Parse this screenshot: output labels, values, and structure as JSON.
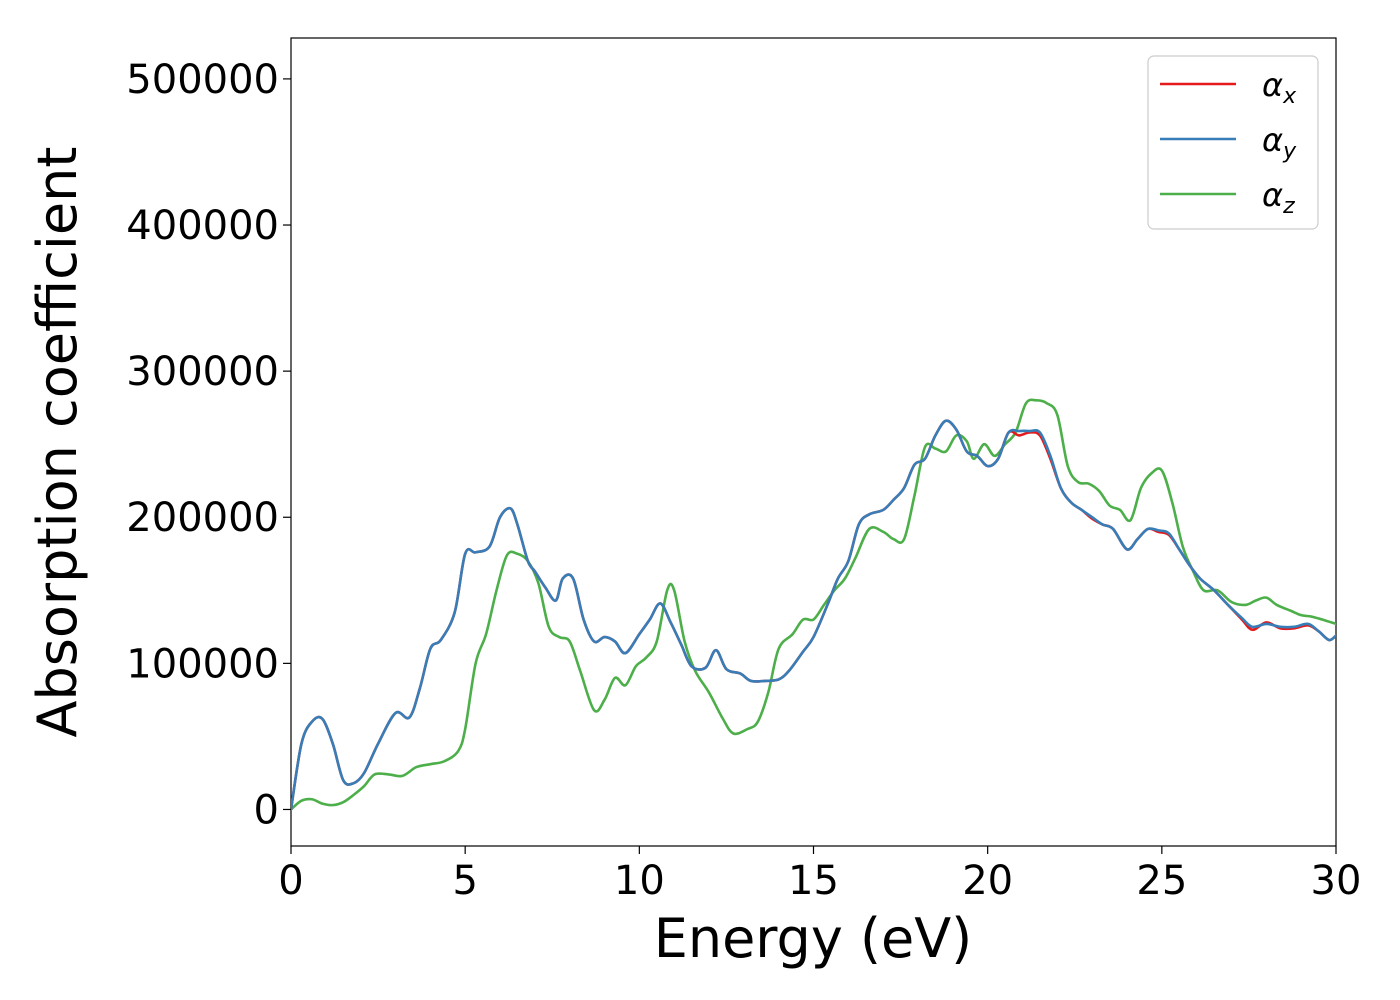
{
  "chart_data": {
    "type": "line",
    "title": "",
    "xlabel": "Energy (eV)",
    "ylabel": "Absorption coefficient",
    "xlim": [
      0,
      30
    ],
    "ylim": [
      -25000,
      528000
    ],
    "xticks": [
      0,
      5,
      10,
      15,
      20,
      25,
      30
    ],
    "xtick_labels": [
      "0",
      "5",
      "10",
      "15",
      "20",
      "25",
      "30"
    ],
    "yticks": [
      0,
      100000,
      200000,
      300000,
      400000,
      500000
    ],
    "ytick_labels": [
      "0",
      "100000",
      "200000",
      "300000",
      "400000",
      "500000"
    ],
    "grid": false,
    "legend_position": "top-right",
    "series": [
      {
        "name": "αx",
        "symbol": "α",
        "subscript": "x",
        "color": "#e41a1c",
        "x": [
          0,
          0.3,
          0.6,
          0.9,
          1.2,
          1.5,
          1.8,
          2.1,
          2.5,
          3.0,
          3.4,
          3.7,
          4.0,
          4.3,
          4.7,
          5.0,
          5.3,
          5.7,
          6.0,
          6.3,
          6.5,
          6.8,
          7.0,
          7.3,
          7.6,
          7.8,
          8.1,
          8.4,
          8.7,
          9.0,
          9.3,
          9.6,
          10.0,
          10.3,
          10.6,
          10.9,
          11.2,
          11.5,
          11.9,
          12.2,
          12.5,
          12.9,
          13.2,
          13.6,
          14.0,
          14.3,
          14.7,
          15.0,
          15.4,
          15.7,
          16.0,
          16.3,
          16.6,
          17.0,
          17.3,
          17.6,
          17.9,
          18.2,
          18.5,
          18.8,
          19.1,
          19.4,
          19.7,
          20.0,
          20.3,
          20.6,
          20.9,
          21.2,
          21.5,
          21.8,
          22.1,
          22.4,
          22.7,
          23.0,
          23.3,
          23.6,
          24.0,
          24.3,
          24.6,
          24.9,
          25.2,
          25.5,
          25.8,
          26.1,
          26.5,
          26.9,
          27.3,
          27.6,
          28.0,
          28.4,
          28.8,
          29.2,
          29.5,
          29.8,
          30.0
        ],
        "y": [
          0,
          45000,
          60000,
          62000,
          45000,
          20000,
          18000,
          25000,
          45000,
          66000,
          63000,
          83000,
          110000,
          116000,
          135000,
          175000,
          176000,
          180000,
          200000,
          206000,
          195000,
          170000,
          163000,
          152000,
          143000,
          158000,
          158000,
          130000,
          115000,
          118000,
          115000,
          107000,
          120000,
          130000,
          141000,
          128000,
          113000,
          98000,
          97000,
          109000,
          96000,
          93000,
          88000,
          88000,
          89000,
          95000,
          108000,
          118000,
          140000,
          158000,
          170000,
          195000,
          202000,
          205000,
          212000,
          220000,
          236000,
          240000,
          256000,
          266000,
          260000,
          245000,
          242000,
          235000,
          240000,
          258000,
          256000,
          258000,
          256000,
          240000,
          220000,
          210000,
          205000,
          199000,
          195000,
          192000,
          178000,
          185000,
          192000,
          190000,
          188000,
          178000,
          167000,
          158000,
          150000,
          140000,
          130000,
          123000,
          128000,
          124000,
          124000,
          126000,
          122000,
          116000,
          119000
        ]
      },
      {
        "name": "αy",
        "symbol": "α",
        "subscript": "y",
        "color": "#377eb8",
        "x": [
          0,
          0.3,
          0.6,
          0.9,
          1.2,
          1.5,
          1.8,
          2.1,
          2.5,
          3.0,
          3.4,
          3.7,
          4.0,
          4.3,
          4.7,
          5.0,
          5.3,
          5.7,
          6.0,
          6.3,
          6.5,
          6.8,
          7.0,
          7.3,
          7.6,
          7.8,
          8.1,
          8.4,
          8.7,
          9.0,
          9.3,
          9.6,
          10.0,
          10.3,
          10.6,
          10.9,
          11.2,
          11.5,
          11.9,
          12.2,
          12.5,
          12.9,
          13.2,
          13.6,
          14.0,
          14.3,
          14.7,
          15.0,
          15.4,
          15.7,
          16.0,
          16.3,
          16.6,
          17.0,
          17.3,
          17.6,
          17.9,
          18.2,
          18.5,
          18.8,
          19.1,
          19.4,
          19.7,
          20.0,
          20.3,
          20.6,
          20.9,
          21.2,
          21.5,
          21.8,
          22.1,
          22.4,
          22.7,
          23.0,
          23.3,
          23.6,
          24.0,
          24.3,
          24.6,
          24.9,
          25.2,
          25.5,
          25.8,
          26.1,
          26.5,
          26.9,
          27.3,
          27.6,
          28.0,
          28.4,
          28.8,
          29.2,
          29.5,
          29.8,
          30.0
        ],
        "y": [
          0,
          45000,
          60000,
          62000,
          45000,
          20000,
          18000,
          25000,
          45000,
          66000,
          63000,
          83000,
          110000,
          116000,
          135000,
          175000,
          176000,
          180000,
          200000,
          206000,
          195000,
          170000,
          163000,
          152000,
          143000,
          158000,
          158000,
          130000,
          115000,
          118000,
          115000,
          107000,
          120000,
          130000,
          141000,
          128000,
          113000,
          98000,
          97000,
          109000,
          96000,
          93000,
          88000,
          88000,
          89000,
          95000,
          108000,
          118000,
          140000,
          158000,
          170000,
          195000,
          202000,
          205000,
          212000,
          220000,
          236000,
          240000,
          256000,
          266000,
          260000,
          245000,
          242000,
          235000,
          240000,
          258000,
          259000,
          259000,
          258000,
          242000,
          220000,
          210000,
          205000,
          200000,
          195000,
          192000,
          178000,
          185000,
          192000,
          191000,
          189000,
          178000,
          167000,
          158000,
          150000,
          140000,
          131000,
          125000,
          127000,
          125000,
          125000,
          127000,
          122000,
          116000,
          119000
        ]
      },
      {
        "name": "αz",
        "symbol": "α",
        "subscript": "z",
        "color": "#4daf4a",
        "x": [
          0,
          0.3,
          0.6,
          0.9,
          1.2,
          1.5,
          1.8,
          2.1,
          2.4,
          2.8,
          3.2,
          3.6,
          4.0,
          4.4,
          4.8,
          5.0,
          5.3,
          5.6,
          5.9,
          6.2,
          6.5,
          6.8,
          7.1,
          7.4,
          7.7,
          8.0,
          8.3,
          8.7,
          9.0,
          9.3,
          9.6,
          9.9,
          10.2,
          10.5,
          10.8,
          11.0,
          11.3,
          11.6,
          12.0,
          12.4,
          12.7,
          13.1,
          13.4,
          13.7,
          14.0,
          14.4,
          14.7,
          15.0,
          15.3,
          15.6,
          15.9,
          16.2,
          16.6,
          17.0,
          17.3,
          17.6,
          17.9,
          18.2,
          18.5,
          18.8,
          19.1,
          19.4,
          19.6,
          19.9,
          20.2,
          20.5,
          20.8,
          21.1,
          21.4,
          21.7,
          22.0,
          22.3,
          22.6,
          22.9,
          23.2,
          23.5,
          23.8,
          24.1,
          24.4,
          24.7,
          25.0,
          25.3,
          25.6,
          25.9,
          26.2,
          26.6,
          27.0,
          27.4,
          27.7,
          28.0,
          28.3,
          28.7,
          29.0,
          29.3,
          29.6,
          30.0
        ],
        "y": [
          0,
          6000,
          7000,
          4000,
          3000,
          5000,
          10000,
          16000,
          24000,
          24000,
          23000,
          29000,
          31000,
          33000,
          40000,
          55000,
          100000,
          120000,
          150000,
          174000,
          175000,
          170000,
          155000,
          125000,
          118000,
          115000,
          95000,
          68000,
          75000,
          90000,
          85000,
          98000,
          104000,
          115000,
          150000,
          150000,
          115000,
          95000,
          80000,
          62000,
          52000,
          55000,
          60000,
          80000,
          110000,
          120000,
          130000,
          130000,
          140000,
          150000,
          158000,
          172000,
          192000,
          190000,
          185000,
          185000,
          215000,
          248000,
          247000,
          245000,
          256000,
          252000,
          240000,
          250000,
          242000,
          250000,
          258000,
          278000,
          280000,
          278000,
          270000,
          235000,
          224000,
          223000,
          218000,
          208000,
          205000,
          198000,
          220000,
          230000,
          232000,
          210000,
          180000,
          163000,
          150000,
          150000,
          142000,
          140000,
          143000,
          145000,
          140000,
          136000,
          133000,
          132000,
          130000,
          127000
        ]
      }
    ]
  }
}
